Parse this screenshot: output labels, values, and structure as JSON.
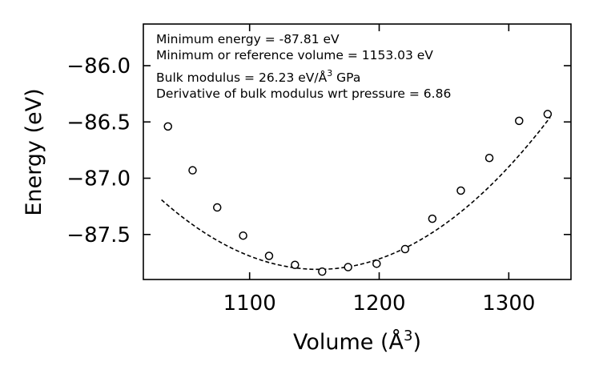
{
  "chart_data": {
    "type": "scatter",
    "title": "",
    "xlabel": "Volume (Å",
    "xlabel_sup": "3",
    "xlabel_end": ")",
    "ylabel": "Energy (eV)",
    "xlim": [
      1018,
      1348
    ],
    "ylim": [
      -87.9,
      -85.63
    ],
    "xticks": [
      1100,
      1200,
      1300
    ],
    "xtick_labels": [
      "1100",
      "1200",
      "1300"
    ],
    "yticks": [
      -86.0,
      -86.5,
      -87.0,
      -87.5
    ],
    "ytick_labels": [
      "−86.0",
      "−86.5",
      "−87.0",
      "−87.5"
    ],
    "series": [
      {
        "name": "data",
        "style": "open-circle",
        "x": [
          1037,
          1056,
          1075,
          1095,
          1115,
          1135,
          1156,
          1176,
          1198,
          1220,
          1241,
          1263,
          1285,
          1308,
          1330
        ],
        "y": [
          -86.54,
          -86.93,
          -87.26,
          -87.51,
          -87.69,
          -87.77,
          -87.83,
          -87.79,
          -87.76,
          -87.63,
          -87.36,
          -87.11,
          -86.82,
          -86.49,
          -86.43
        ]
      },
      {
        "name": "fit",
        "style": "dashed-line",
        "fit": {
          "e0": -87.81,
          "v0": 1153.03,
          "a": 4.22e-05
        },
        "x_range": [
          1032,
          1332
        ]
      }
    ],
    "annotations": {
      "min_energy": "Minimum energy = -87.81 eV",
      "min_volume": "Minimum or reference volume = 1153.03 eV",
      "bulk_modulus": "Bulk modulus = 26.23 eV/Å",
      "bulk_modulus_sup": "3",
      "bulk_modulus_unit": " GPa",
      "derivative": "Derivative of bulk modulus wrt pressure = 6.86"
    },
    "colors": {
      "marker": "#000000",
      "line": "#000000",
      "background": "#ffffff"
    }
  }
}
